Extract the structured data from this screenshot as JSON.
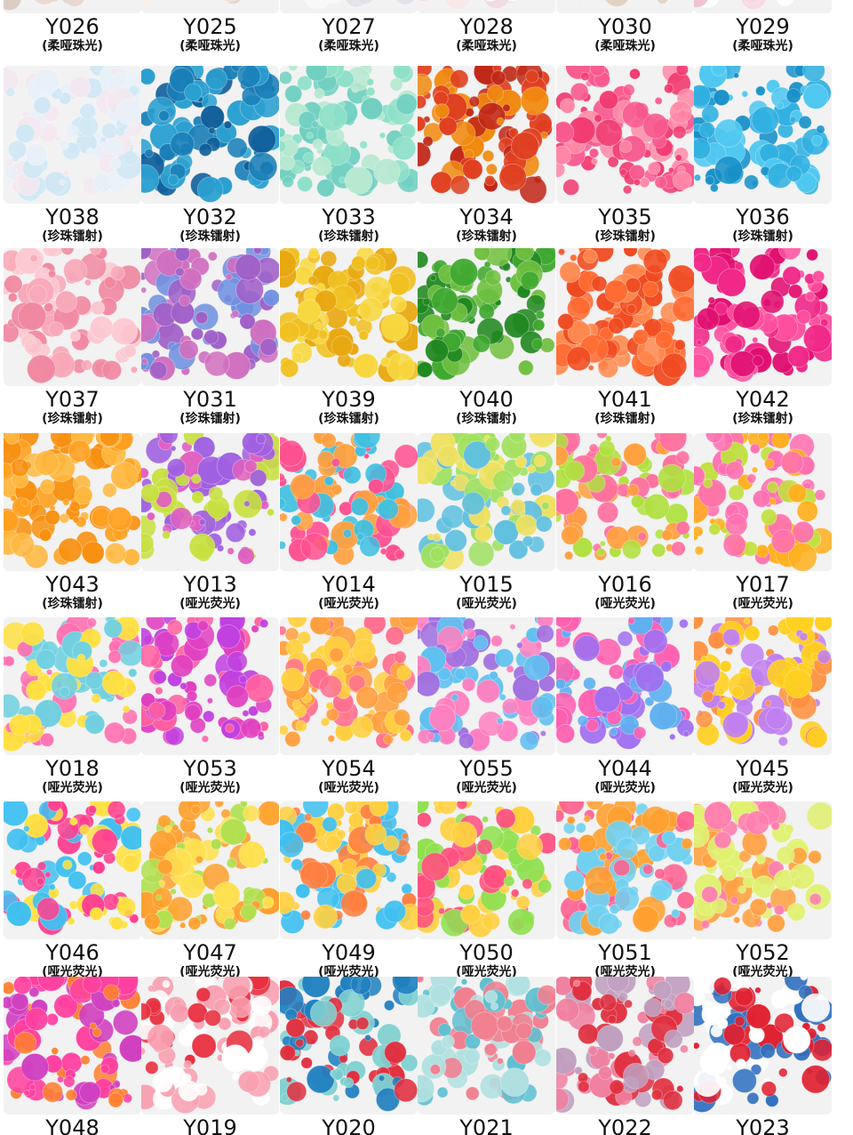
{
  "rows": [
    {
      "items": [
        {
          "code": "Y026",
          "note": "(柔哑珠光)",
          "colors": [
            "#f0e8e0",
            "#e8d8d0",
            "#d8c8c0"
          ]
        },
        {
          "code": "Y025",
          "note": "(柔哑珠光)",
          "colors": [
            "#f0e0d8",
            "#e8d0c8",
            "#f8f0e8"
          ]
        },
        {
          "code": "Y027",
          "note": "(柔哑珠光)",
          "colors": [
            "#f0f0f0",
            "#e0e0e8",
            "#f8f8f8"
          ]
        },
        {
          "code": "Y028",
          "note": "(柔哑珠光)",
          "colors": [
            "#f8e8e8",
            "#f0d8e0",
            "#ffffff"
          ]
        },
        {
          "code": "Y030",
          "note": "(柔哑珠光)",
          "colors": [
            "#302020",
            "#504040",
            "#e0d0c0"
          ]
        },
        {
          "code": "Y029",
          "note": "(柔哑珠光)",
          "colors": [
            "#f8d8e0",
            "#f0c0d0",
            "#ffffff"
          ]
        }
      ]
    },
    {
      "items": [
        {
          "code": "Y038",
          "note": "(珍珠镭射)",
          "colors": [
            "#e8f0f8",
            "#f4e8f0",
            "#d0e8f4"
          ]
        },
        {
          "code": "Y032",
          "note": "(珍珠镭射)",
          "colors": [
            "#1a7fb8",
            "#0f5e9a",
            "#2aa0d0"
          ]
        },
        {
          "code": "Y033",
          "note": "(珍珠镭射)",
          "colors": [
            "#8ee0c8",
            "#b8e8d0",
            "#70d0c0"
          ]
        },
        {
          "code": "Y034",
          "note": "(珍珠镭射)",
          "colors": [
            "#e04020",
            "#f08a10",
            "#c02818"
          ]
        },
        {
          "code": "Y035",
          "note": "(珍珠镭射)",
          "colors": [
            "#f85a90",
            "#ff8aa8",
            "#f03a70"
          ]
        },
        {
          "code": "Y036",
          "note": "(珍珠镭射)",
          "colors": [
            "#30b0e0",
            "#50c8f0",
            "#1890c8"
          ]
        }
      ]
    },
    {
      "items": [
        {
          "code": "Y037",
          "note": "(珍珠镭射)",
          "colors": [
            "#f8a8b8",
            "#fcc8d0",
            "#f088a0"
          ]
        },
        {
          "code": "Y031",
          "note": "(珍珠镭射)",
          "colors": [
            "#a060c8",
            "#7090e0",
            "#d070c0"
          ]
        },
        {
          "code": "Y039",
          "note": "(珍珠镭射)",
          "colors": [
            "#f0c020",
            "#e8a810",
            "#f8d840"
          ]
        },
        {
          "code": "Y040",
          "note": "(珍珠镭射)",
          "colors": [
            "#40a830",
            "#70c040",
            "#208820"
          ]
        },
        {
          "code": "Y041",
          "note": "(珍珠镭射)",
          "colors": [
            "#ff6a30",
            "#ff8a50",
            "#f04a20"
          ]
        },
        {
          "code": "Y042",
          "note": "(珍珠镭射)",
          "colors": [
            "#f02888",
            "#ff50a0",
            "#e01070"
          ]
        }
      ]
    },
    {
      "items": [
        {
          "code": "Y043",
          "note": "(珍珠镭射)",
          "colors": [
            "#ffa020",
            "#ffb840",
            "#f89010"
          ]
        },
        {
          "code": "Y013",
          "note": "(哑光荧光)",
          "colors": [
            "#c8e040",
            "#e060c0",
            "#a060e0"
          ]
        },
        {
          "code": "Y014",
          "note": "(哑光荧光)",
          "colors": [
            "#ff5090",
            "#40c0e0",
            "#ffa040"
          ]
        },
        {
          "code": "Y015",
          "note": "(哑光荧光)",
          "colors": [
            "#a0e060",
            "#60c0e0",
            "#f0e060"
          ]
        },
        {
          "code": "Y016",
          "note": "(哑光荧光)",
          "colors": [
            "#ff70a0",
            "#b0e040",
            "#ffa040"
          ]
        },
        {
          "code": "Y017",
          "note": "(哑光荧光)",
          "colors": [
            "#ff70b0",
            "#c0e040",
            "#ffb020"
          ]
        }
      ]
    },
    {
      "items": [
        {
          "code": "Y018",
          "note": "(哑光荧光)",
          "colors": [
            "#ffe040",
            "#ff70b0",
            "#70d0e0"
          ]
        },
        {
          "code": "Y053",
          "note": "(哑光荧光)",
          "colors": [
            "#e040c0",
            "#ff60a0",
            "#c040e0"
          ]
        },
        {
          "code": "Y054",
          "note": "(哑光荧光)",
          "colors": [
            "#ffa040",
            "#ffd040",
            "#ff7090"
          ]
        },
        {
          "code": "Y055",
          "note": "(哑光荧光)",
          "colors": [
            "#a070e0",
            "#60c0f0",
            "#ff80c0"
          ]
        },
        {
          "code": "Y044",
          "note": "(哑光荧光)",
          "colors": [
            "#ff60b0",
            "#a070f0",
            "#60b0f0"
          ]
        },
        {
          "code": "Y045",
          "note": "(哑光荧光)",
          "colors": [
            "#ffd020",
            "#ff9040",
            "#c080f0"
          ]
        }
      ]
    },
    {
      "items": [
        {
          "code": "Y046",
          "note": "(哑光荧光)",
          "colors": [
            "#ff4090",
            "#40c0f0",
            "#ffe040"
          ]
        },
        {
          "code": "Y047",
          "note": "(哑光荧光)",
          "colors": [
            "#ffa030",
            "#ffe050",
            "#b0e050"
          ]
        },
        {
          "code": "Y049",
          "note": "(哑光荧光)",
          "colors": [
            "#40c0f0",
            "#ffd040",
            "#ff8040"
          ]
        },
        {
          "code": "Y050",
          "note": "(哑光荧光)",
          "colors": [
            "#ff5080",
            "#90e050",
            "#ffd040"
          ]
        },
        {
          "code": "Y051",
          "note": "(哑光荧光)",
          "colors": [
            "#ff6090",
            "#ffa030",
            "#70d0f0"
          ]
        },
        {
          "code": "Y052",
          "note": "(哑光荧光)",
          "colors": [
            "#e0f070",
            "#ff80b0",
            "#ffa040"
          ]
        }
      ]
    },
    {
      "items": [
        {
          "code": "Y048",
          "colors": [
            "#ff40a0",
            "#ff8030",
            "#d040c0"
          ]
        },
        {
          "code": "Y019",
          "colors": [
            "#e83040",
            "#f8a0b0",
            "#ffffff"
          ]
        },
        {
          "code": "Y020",
          "colors": [
            "#e03040",
            "#2080c0",
            "#80d0d0"
          ]
        },
        {
          "code": "Y021",
          "colors": [
            "#60c0d0",
            "#f08090",
            "#b0e0e0"
          ]
        },
        {
          "code": "Y022",
          "colors": [
            "#e03040",
            "#f080a0",
            "#c0a0c0"
          ]
        },
        {
          "code": "Y023",
          "colors": [
            "#e02030",
            "#3070c0",
            "#ffffff"
          ]
        }
      ]
    }
  ]
}
